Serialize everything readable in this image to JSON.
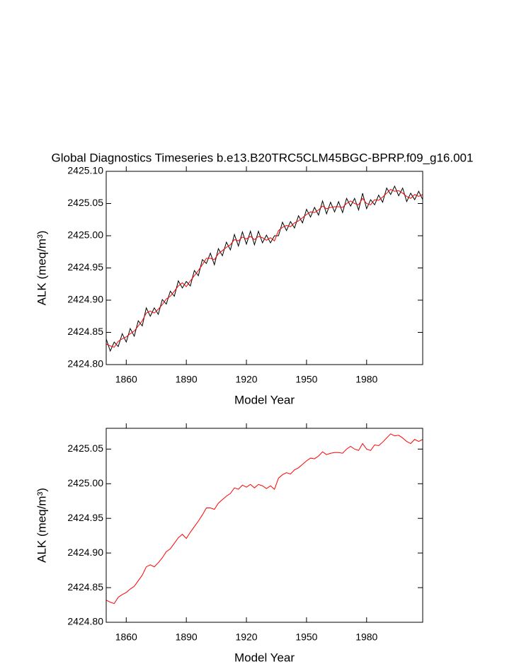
{
  "chart_data": [
    {
      "type": "line",
      "title": "Global Diagnostics Timeseries b.e13.B20TRC5CLM45BGC-BPRP.f09_g16.001",
      "xlabel": "Model Year",
      "ylabel": "ALK (meq/m³)",
      "x": [
        1850,
        1852,
        1854,
        1856,
        1858,
        1860,
        1862,
        1864,
        1866,
        1868,
        1870,
        1872,
        1874,
        1876,
        1878,
        1880,
        1882,
        1884,
        1886,
        1888,
        1890,
        1892,
        1894,
        1896,
        1898,
        1900,
        1902,
        1904,
        1906,
        1908,
        1910,
        1912,
        1914,
        1916,
        1918,
        1920,
        1922,
        1924,
        1926,
        1928,
        1930,
        1932,
        1934,
        1936,
        1938,
        1940,
        1942,
        1944,
        1946,
        1948,
        1950,
        1952,
        1954,
        1956,
        1958,
        1960,
        1962,
        1964,
        1966,
        1968,
        1970,
        1972,
        1974,
        1976,
        1978,
        1980,
        1982,
        1984,
        1986,
        1988,
        1990,
        1992,
        1994,
        1996,
        1998,
        2000,
        2002,
        2004,
        2006,
        2008
      ],
      "series": [
        {
          "color": "#000000",
          "values": [
            2424.84,
            2424.821,
            2424.835,
            2424.828,
            2424.848,
            2424.835,
            2424.856,
            2424.844,
            2424.868,
            2424.86,
            2424.888,
            2424.875,
            2424.888,
            2424.878,
            2424.901,
            2424.894,
            2424.914,
            2424.906,
            2424.93,
            2424.919,
            2424.929,
            2424.922,
            2424.946,
            2424.938,
            2424.963,
            2424.957,
            2424.973,
            2424.955,
            2424.98,
            2424.969,
            2424.99,
            2424.978,
            2425.002,
            2424.984,
            2425.006,
            2424.987,
            2425.007,
            2424.986,
            2425.007,
            2424.989,
            2425.001,
            2424.989,
            2425.0,
            2425.0,
            2425.021,
            2425.008,
            2425.022,
            2425.012,
            2425.031,
            2425.02,
            2425.041,
            2425.029,
            2425.044,
            2425.032,
            2425.054,
            2425.034,
            2425.052,
            2425.037,
            2425.053,
            2425.036,
            2425.058,
            2425.046,
            2425.058,
            2425.04,
            2425.066,
            2425.042,
            2425.056,
            2425.048,
            2425.063,
            2425.052,
            2425.074,
            2425.064,
            2425.077,
            2425.062,
            2425.074,
            2425.053,
            2425.066,
            2425.056,
            2425.069,
            2425.056
          ]
        },
        {
          "color": "#ff0000",
          "values": [
            2424.832,
            2424.829,
            2424.827,
            2424.836,
            2424.84,
            2424.843,
            2424.848,
            2424.852,
            2424.86,
            2424.868,
            2424.88,
            2424.883,
            2424.88,
            2424.886,
            2424.893,
            2424.902,
            2424.906,
            2424.914,
            2424.922,
            2424.927,
            2424.921,
            2424.93,
            2424.938,
            2424.946,
            2424.955,
            2424.965,
            2424.965,
            2424.963,
            2424.972,
            2424.977,
            2424.982,
            2424.986,
            2424.994,
            2424.992,
            2424.998,
            2424.995,
            2424.999,
            2424.994,
            2424.999,
            2424.997,
            2424.993,
            2424.997,
            2424.992,
            2425.008,
            2425.013,
            2425.016,
            2425.014,
            2425.02,
            2425.023,
            2425.028,
            2425.033,
            2425.037,
            2425.036,
            2425.04,
            2425.046,
            2425.042,
            2425.044,
            2425.045,
            2425.045,
            2425.044,
            2425.05,
            2425.054,
            2425.05,
            2425.048,
            2425.058,
            2425.05,
            2425.048,
            2425.056,
            2425.055,
            2425.06,
            2425.066,
            2425.072,
            2425.069,
            2425.07,
            2425.066,
            2425.061,
            2425.058,
            2425.064,
            2425.061,
            2425.064
          ]
        }
      ],
      "xlim": [
        1850,
        2008
      ],
      "xticks": [
        1860,
        1890,
        1920,
        1950,
        1980
      ],
      "ylim": [
        2424.8,
        2425.1
      ],
      "yticks": [
        {
          "value": 2424.8,
          "label": "2424.80"
        },
        {
          "value": 2424.85,
          "label": "2424.85"
        },
        {
          "value": 2424.9,
          "label": "2424.90"
        },
        {
          "value": 2424.95,
          "label": "2424.95"
        },
        {
          "value": 2425.0,
          "label": "2425.00"
        },
        {
          "value": 2425.05,
          "label": "2425.05"
        },
        {
          "value": 2425.1,
          "label": "2425.10"
        }
      ]
    },
    {
      "type": "line",
      "xlabel": "Model Year",
      "ylabel": "ALK (meq/m³)",
      "x": [
        1850,
        1852,
        1854,
        1856,
        1858,
        1860,
        1862,
        1864,
        1866,
        1868,
        1870,
        1872,
        1874,
        1876,
        1878,
        1880,
        1882,
        1884,
        1886,
        1888,
        1890,
        1892,
        1894,
        1896,
        1898,
        1900,
        1902,
        1904,
        1906,
        1908,
        1910,
        1912,
        1914,
        1916,
        1918,
        1920,
        1922,
        1924,
        1926,
        1928,
        1930,
        1932,
        1934,
        1936,
        1938,
        1940,
        1942,
        1944,
        1946,
        1948,
        1950,
        1952,
        1954,
        1956,
        1958,
        1960,
        1962,
        1964,
        1966,
        1968,
        1970,
        1972,
        1974,
        1976,
        1978,
        1980,
        1982,
        1984,
        1986,
        1988,
        1990,
        1992,
        1994,
        1996,
        1998,
        2000,
        2002,
        2004,
        2006,
        2008
      ],
      "series": [
        {
          "color": "#ff0000",
          "values": [
            2424.832,
            2424.829,
            2424.827,
            2424.836,
            2424.84,
            2424.843,
            2424.848,
            2424.852,
            2424.86,
            2424.868,
            2424.88,
            2424.883,
            2424.88,
            2424.886,
            2424.893,
            2424.902,
            2424.906,
            2424.914,
            2424.922,
            2424.927,
            2424.921,
            2424.93,
            2424.938,
            2424.946,
            2424.955,
            2424.965,
            2424.965,
            2424.963,
            2424.972,
            2424.977,
            2424.982,
            2424.986,
            2424.994,
            2424.992,
            2424.998,
            2424.995,
            2424.999,
            2424.994,
            2424.999,
            2424.997,
            2424.993,
            2424.997,
            2424.992,
            2425.008,
            2425.013,
            2425.016,
            2425.014,
            2425.02,
            2425.023,
            2425.028,
            2425.033,
            2425.037,
            2425.036,
            2425.04,
            2425.046,
            2425.042,
            2425.044,
            2425.045,
            2425.045,
            2425.044,
            2425.05,
            2425.054,
            2425.05,
            2425.048,
            2425.058,
            2425.05,
            2425.048,
            2425.056,
            2425.055,
            2425.06,
            2425.066,
            2425.072,
            2425.069,
            2425.07,
            2425.066,
            2425.061,
            2425.058,
            2425.064,
            2425.061,
            2425.064
          ]
        }
      ],
      "xlim": [
        1850,
        2008
      ],
      "xticks": [
        1860,
        1890,
        1920,
        1950,
        1980
      ],
      "ylim": [
        2424.8,
        2425.08
      ],
      "yticks": [
        {
          "value": 2424.8,
          "label": "2424.80"
        },
        {
          "value": 2424.85,
          "label": "2424.85"
        },
        {
          "value": 2424.9,
          "label": "2424.90"
        },
        {
          "value": 2424.95,
          "label": "2424.95"
        },
        {
          "value": 2425.0,
          "label": "2425.00"
        },
        {
          "value": 2425.05,
          "label": "2425.05"
        }
      ]
    }
  ]
}
